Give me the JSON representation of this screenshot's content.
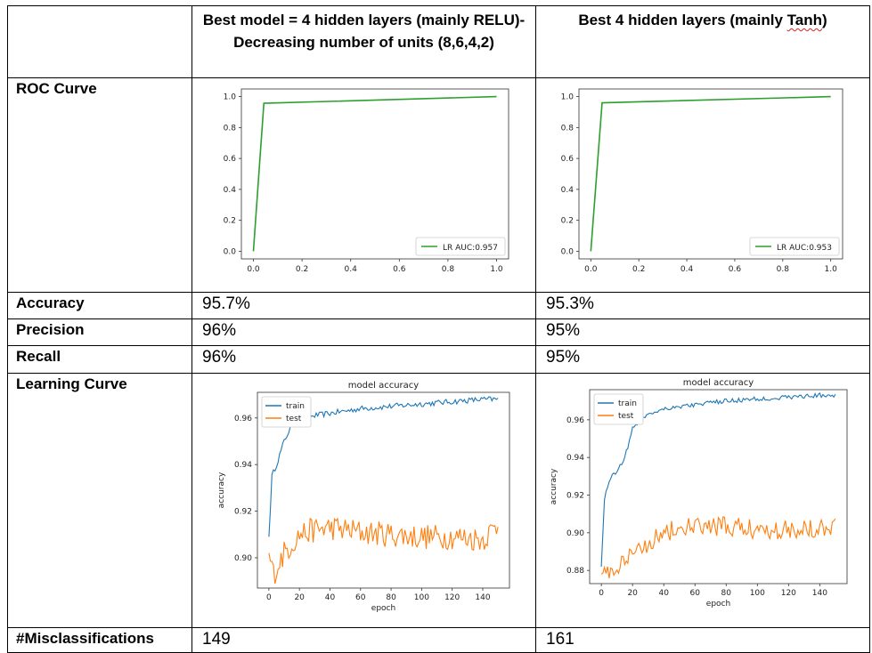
{
  "header": {
    "col1": "Best model = 4 hidden layers (mainly RELU)- Decreasing number of units (8,6,4,2)",
    "col2_prefix": "Best 4 hidden layers (mainly ",
    "col2_word": "Tanh",
    "col2_suffix": ")"
  },
  "rows": {
    "roc": "ROC Curve",
    "accuracy": {
      "label": "Accuracy",
      "v1": "95.7%",
      "v2": "95.3%"
    },
    "precision": {
      "label": "Precision",
      "v1": "96%",
      "v2": "95%"
    },
    "recall": {
      "label": "Recall",
      "v1": "96%",
      "v2": "95%"
    },
    "learning": "Learning Curve",
    "misclass": {
      "label": "#Misclassifications",
      "v1": "149",
      "v2": "161"
    }
  },
  "colors": {
    "roc_line": "#2ca02c",
    "train": "#1f77b4",
    "test": "#ff7f0e"
  },
  "chart_data": [
    {
      "id": "roc1",
      "type": "line",
      "xlim": [
        0,
        1
      ],
      "ylim": [
        0,
        1
      ],
      "xticks": [
        "0.0",
        "0.2",
        "0.4",
        "0.6",
        "0.8",
        "1.0"
      ],
      "yticks": [
        "0.0",
        "0.2",
        "0.4",
        "0.6",
        "0.8",
        "1.0"
      ],
      "series": [
        {
          "name": "LR AUC:0.957",
          "x": [
            0,
            0.043,
            1
          ],
          "y": [
            0,
            0.957,
            1
          ]
        }
      ],
      "legend": "lower-right"
    },
    {
      "id": "roc2",
      "type": "line",
      "xlim": [
        0,
        1
      ],
      "ylim": [
        0,
        1
      ],
      "xticks": [
        "0.0",
        "0.2",
        "0.4",
        "0.6",
        "0.8",
        "1.0"
      ],
      "yticks": [
        "0.0",
        "0.2",
        "0.4",
        "0.6",
        "0.8",
        "1.0"
      ],
      "series": [
        {
          "name": "LR AUC:0.953",
          "x": [
            0,
            0.047,
            1
          ],
          "y": [
            0,
            0.96,
            1
          ]
        }
      ],
      "legend": "lower-right"
    },
    {
      "id": "lc1",
      "type": "line",
      "title": "model accuracy",
      "xlabel": "epoch",
      "ylabel": "accuracy",
      "xlim": [
        0,
        150
      ],
      "ylim": [
        0.887,
        0.971
      ],
      "xticks": [
        0,
        20,
        40,
        60,
        80,
        100,
        120,
        140
      ],
      "yticks": [
        "0.90",
        "0.92",
        "0.94",
        "0.96"
      ],
      "yticks_values": [
        0.9,
        0.92,
        0.94,
        0.96
      ],
      "legend": "upper-left",
      "series": [
        {
          "name": "train",
          "anchors_x": [
            0,
            2,
            5,
            10,
            15,
            20,
            30,
            40,
            50,
            60,
            80,
            100,
            120,
            140,
            150
          ],
          "anchors_y": [
            0.909,
            0.935,
            0.94,
            0.95,
            0.957,
            0.959,
            0.961,
            0.962,
            0.963,
            0.964,
            0.965,
            0.966,
            0.967,
            0.968,
            0.968
          ]
        },
        {
          "name": "test",
          "anchors_x": [
            0,
            3,
            6,
            10,
            15,
            20,
            30,
            40,
            50,
            60,
            80,
            100,
            120,
            140,
            150
          ],
          "anchors_y": [
            0.902,
            0.893,
            0.897,
            0.902,
            0.906,
            0.91,
            0.912,
            0.913,
            0.912,
            0.911,
            0.91,
            0.909,
            0.909,
            0.908,
            0.914
          ]
        }
      ]
    },
    {
      "id": "lc2",
      "type": "line",
      "title": "model accuracy",
      "xlabel": "epoch",
      "ylabel": "accuracy",
      "xlim": [
        0,
        150
      ],
      "ylim": [
        0.873,
        0.976
      ],
      "xticks": [
        0,
        20,
        40,
        60,
        80,
        100,
        120,
        140
      ],
      "yticks": [
        "0.88",
        "0.90",
        "0.92",
        "0.94",
        "0.96"
      ],
      "yticks_values": [
        0.88,
        0.9,
        0.92,
        0.94,
        0.96
      ],
      "legend": "upper-left",
      "series": [
        {
          "name": "train",
          "anchors_x": [
            0,
            2,
            5,
            10,
            15,
            20,
            25,
            30,
            40,
            50,
            60,
            80,
            100,
            120,
            140,
            150
          ],
          "anchors_y": [
            0.882,
            0.918,
            0.928,
            0.933,
            0.94,
            0.955,
            0.96,
            0.963,
            0.966,
            0.967,
            0.968,
            0.97,
            0.971,
            0.972,
            0.973,
            0.973
          ]
        },
        {
          "name": "test",
          "anchors_x": [
            0,
            3,
            6,
            10,
            15,
            20,
            30,
            40,
            50,
            60,
            80,
            100,
            120,
            140,
            150
          ],
          "anchors_y": [
            0.878,
            0.88,
            0.879,
            0.881,
            0.884,
            0.888,
            0.895,
            0.9,
            0.902,
            0.903,
            0.903,
            0.902,
            0.902,
            0.903,
            0.905
          ]
        }
      ]
    }
  ]
}
